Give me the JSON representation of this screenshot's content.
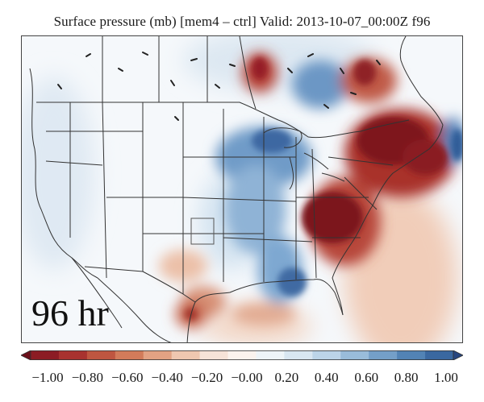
{
  "title": "Surface pressure (mb) [mem4 – ctrl] Valid: 2013-10-07_00:00Z f96",
  "forecast_label": "96 hr",
  "colorbar": {
    "min": -1.0,
    "max": 1.0,
    "tick_labels": [
      "−1.00",
      "−0.80",
      "−0.60",
      "−0.40",
      "−0.20",
      "−0.00",
      "0.20",
      "0.40",
      "0.60",
      "0.80",
      "1.00"
    ],
    "colors": [
      "#6b0f1a",
      "#8c1c24",
      "#a8322f",
      "#bf5640",
      "#d27b5a",
      "#e3a283",
      "#efc7b0",
      "#f6e3d8",
      "#fbf3ee",
      "#eef4f8",
      "#d8e6f1",
      "#bcd4e8",
      "#99bcda",
      "#749fc8",
      "#5283b5",
      "#3a68a0",
      "#27467f"
    ]
  },
  "colors": {
    "strong_negative": "#7d1420",
    "negative": "#c26a55",
    "weak_negative": "#ecc1aa",
    "neutral": "#f4f7fa",
    "weak_positive": "#c9dcec",
    "positive": "#7ba3cc",
    "strong_positive": "#2e5a96",
    "borders": "#3a3a3a"
  }
}
